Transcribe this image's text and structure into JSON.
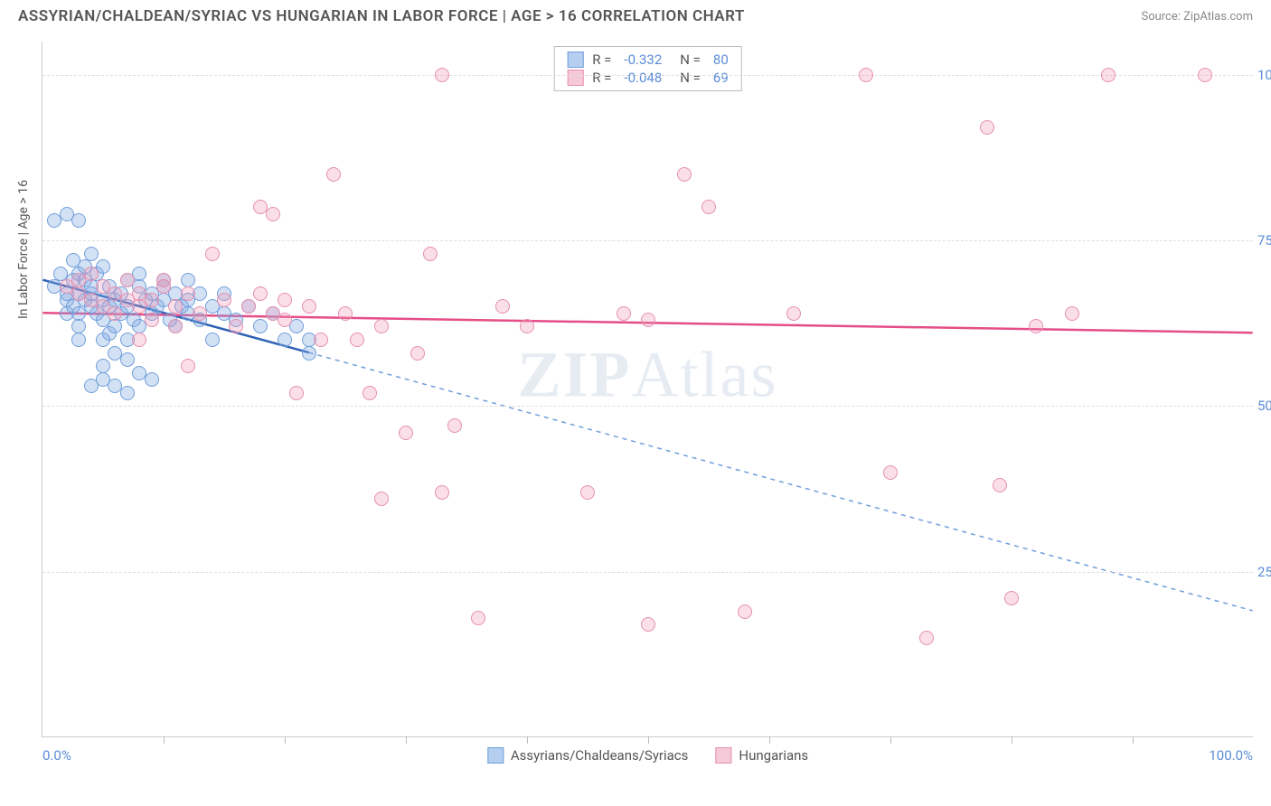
{
  "title": "ASSYRIAN/CHALDEAN/SYRIAC VS HUNGARIAN IN LABOR FORCE | AGE > 16 CORRELATION CHART",
  "source": "Source: ZipAtlas.com",
  "y_axis_title": "In Labor Force | Age > 16",
  "watermark": {
    "bold": "ZIP",
    "rest": "Atlas"
  },
  "chart": {
    "type": "scatter",
    "xlim": [
      0,
      100
    ],
    "ylim": [
      0,
      105
    ],
    "xtick_labels": {
      "0": "0.0%",
      "100": "100.0%"
    },
    "ytick_positions": [
      25,
      50,
      75,
      100
    ],
    "ytick_labels": [
      "25.0%",
      "50.0%",
      "75.0%",
      "100.0%"
    ],
    "xtick_minor": [
      10,
      20,
      30,
      40,
      50,
      60,
      70,
      80,
      90
    ],
    "grid_color": "#dddddd",
    "background_color": "#ffffff",
    "axis_color": "#cccccc",
    "tick_label_color": "#5b8dd6",
    "tick_label_fontsize": 15,
    "marker_radius": 8,
    "series": [
      {
        "name": "Assyrians/Chaldeans/Syriacs",
        "fill": "rgba(130,170,225,0.35)",
        "stroke": "#6f9edb",
        "swatch_fill": "#b6cef0",
        "swatch_border": "#6f9edb",
        "R": "-0.332",
        "N": "80",
        "trend": {
          "x1": 0,
          "y1": 69,
          "x2": 22,
          "y2": 58,
          "color": "#2f62b5",
          "width": 2.5,
          "dash": "none"
        },
        "trend_ext": {
          "x1": 22,
          "y1": 58,
          "x2": 100,
          "y2": 19,
          "color": "#6f9edb",
          "width": 1.5,
          "dash": "5,5"
        },
        "points": [
          [
            1,
            78
          ],
          [
            1,
            68
          ],
          [
            1.5,
            70
          ],
          [
            2,
            79
          ],
          [
            2,
            66
          ],
          [
            2,
            64
          ],
          [
            2,
            67
          ],
          [
            2.5,
            72
          ],
          [
            2.5,
            69
          ],
          [
            2.5,
            65
          ],
          [
            3,
            78
          ],
          [
            3,
            70
          ],
          [
            3,
            67
          ],
          [
            3,
            64
          ],
          [
            3,
            62
          ],
          [
            3.5,
            69
          ],
          [
            3.5,
            66
          ],
          [
            3.5,
            71
          ],
          [
            4,
            73
          ],
          [
            4,
            68
          ],
          [
            4,
            65
          ],
          [
            4,
            67
          ],
          [
            4.5,
            70
          ],
          [
            4.5,
            64
          ],
          [
            5,
            71
          ],
          [
            5,
            66
          ],
          [
            5,
            63
          ],
          [
            5,
            56
          ],
          [
            5,
            54
          ],
          [
            5.5,
            68
          ],
          [
            5.5,
            65
          ],
          [
            5.5,
            61
          ],
          [
            6,
            66
          ],
          [
            6,
            62
          ],
          [
            6,
            58
          ],
          [
            6.5,
            67
          ],
          [
            6.5,
            64
          ],
          [
            7,
            69
          ],
          [
            7,
            65
          ],
          [
            7,
            57
          ],
          [
            7.5,
            63
          ],
          [
            8,
            68
          ],
          [
            8,
            70
          ],
          [
            8,
            62
          ],
          [
            8,
            55
          ],
          [
            8.5,
            66
          ],
          [
            9,
            64
          ],
          [
            9,
            67
          ],
          [
            9.5,
            65
          ],
          [
            10,
            69
          ],
          [
            10,
            66
          ],
          [
            10,
            68
          ],
          [
            10.5,
            63
          ],
          [
            11,
            67
          ],
          [
            11,
            62
          ],
          [
            11.5,
            65
          ],
          [
            12,
            64
          ],
          [
            12,
            66
          ],
          [
            12,
            69
          ],
          [
            13,
            67
          ],
          [
            13,
            63
          ],
          [
            14,
            65
          ],
          [
            14,
            60
          ],
          [
            15,
            64
          ],
          [
            15,
            67
          ],
          [
            16,
            63
          ],
          [
            17,
            65
          ],
          [
            18,
            62
          ],
          [
            19,
            64
          ],
          [
            20,
            60
          ],
          [
            21,
            62
          ],
          [
            22,
            60
          ],
          [
            22,
            58
          ],
          [
            4,
            53
          ],
          [
            6,
            53
          ],
          [
            7,
            52
          ],
          [
            9,
            54
          ],
          [
            3,
            60
          ],
          [
            5,
            60
          ],
          [
            7,
            60
          ]
        ]
      },
      {
        "name": "Hungarians",
        "fill": "rgba(240,150,180,0.30)",
        "stroke": "#e68fb0",
        "swatch_fill": "#f6c9d9",
        "swatch_border": "#e68fb0",
        "R": "-0.048",
        "N": "69",
        "trend": {
          "x1": 0,
          "y1": 64,
          "x2": 100,
          "y2": 61,
          "color": "#e54d87",
          "width": 2.5,
          "dash": "none"
        },
        "points": [
          [
            2,
            68
          ],
          [
            3,
            67
          ],
          [
            3,
            69
          ],
          [
            4,
            66
          ],
          [
            4,
            70
          ],
          [
            5,
            65
          ],
          [
            5,
            68
          ],
          [
            6,
            67
          ],
          [
            6,
            64
          ],
          [
            7,
            66
          ],
          [
            7,
            69
          ],
          [
            8,
            65
          ],
          [
            8,
            67
          ],
          [
            8,
            60
          ],
          [
            9,
            66
          ],
          [
            9,
            63
          ],
          [
            10,
            68
          ],
          [
            10,
            69
          ],
          [
            11,
            65
          ],
          [
            11,
            62
          ],
          [
            12,
            56
          ],
          [
            12,
            67
          ],
          [
            13,
            64
          ],
          [
            14,
            73
          ],
          [
            15,
            66
          ],
          [
            16,
            62
          ],
          [
            17,
            65
          ],
          [
            18,
            80
          ],
          [
            18,
            67
          ],
          [
            19,
            64
          ],
          [
            19,
            79
          ],
          [
            20,
            66
          ],
          [
            20,
            63
          ],
          [
            21,
            52
          ],
          [
            22,
            65
          ],
          [
            23,
            60
          ],
          [
            24,
            85
          ],
          [
            25,
            64
          ],
          [
            26,
            60
          ],
          [
            27,
            52
          ],
          [
            28,
            62
          ],
          [
            30,
            46
          ],
          [
            31,
            58
          ],
          [
            32,
            73
          ],
          [
            33,
            37
          ],
          [
            33,
            100
          ],
          [
            34,
            47
          ],
          [
            36,
            18
          ],
          [
            38,
            65
          ],
          [
            40,
            62
          ],
          [
            45,
            37
          ],
          [
            48,
            64
          ],
          [
            50,
            63
          ],
          [
            53,
            85
          ],
          [
            55,
            80
          ],
          [
            58,
            19
          ],
          [
            62,
            64
          ],
          [
            68,
            100
          ],
          [
            70,
            40
          ],
          [
            73,
            15
          ],
          [
            78,
            92
          ],
          [
            79,
            38
          ],
          [
            80,
            21
          ],
          [
            82,
            62
          ],
          [
            85,
            64
          ],
          [
            88,
            100
          ],
          [
            96,
            100
          ],
          [
            50,
            17
          ],
          [
            28,
            36
          ]
        ]
      }
    ]
  },
  "legend_top_labels": {
    "R": "R =",
    "N": "N ="
  },
  "legend_bottom": [
    {
      "label": "Assyrians/Chaldeans/Syriacs",
      "fill": "#b6cef0",
      "border": "#6f9edb"
    },
    {
      "label": "Hungarians",
      "fill": "#f6c9d9",
      "border": "#e68fb0"
    }
  ]
}
